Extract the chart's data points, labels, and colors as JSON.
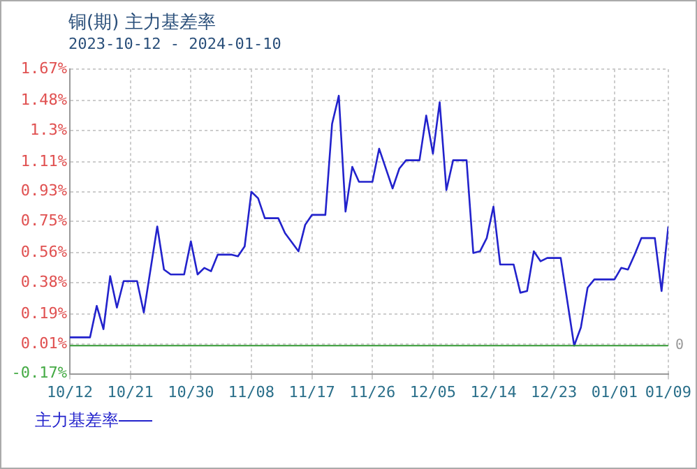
{
  "chart_data": {
    "type": "line",
    "title": "铜(期) 主力基差率",
    "subtitle": "2023-10-12 - 2024-01-10",
    "x": [
      "2023-10-12",
      "2023-10-15",
      "2023-10-16",
      "2023-10-17",
      "2023-10-18",
      "2023-10-19",
      "2023-10-20",
      "2023-10-22",
      "2023-10-23",
      "2023-10-25",
      "2023-10-26",
      "2023-10-27",
      "2023-10-29",
      "2023-10-30",
      "2023-10-31",
      "2023-11-01",
      "2023-11-02",
      "2023-11-03",
      "2023-11-05",
      "2023-11-06",
      "2023-11-07",
      "2023-11-08",
      "2023-11-09",
      "2023-11-10",
      "2023-11-12",
      "2023-11-13",
      "2023-11-15",
      "2023-11-16",
      "2023-11-17",
      "2023-11-19",
      "2023-11-20",
      "2023-11-21",
      "2023-11-22",
      "2023-11-23",
      "2023-11-24",
      "2023-11-26",
      "2023-11-27",
      "2023-11-29",
      "2023-11-30",
      "2023-12-01",
      "2023-12-03",
      "2023-12-04",
      "2023-12-05",
      "2023-12-06",
      "2023-12-07",
      "2023-12-08",
      "2023-12-10",
      "2023-12-11",
      "2023-12-12",
      "2023-12-13",
      "2023-12-14",
      "2023-12-15",
      "2023-12-17",
      "2023-12-18",
      "2023-12-19",
      "2023-12-20",
      "2023-12-21",
      "2023-12-22",
      "2023-12-24",
      "2023-12-26",
      "2023-12-27",
      "2023-12-28",
      "2023-12-29",
      "2024-01-01",
      "2024-01-02",
      "2024-01-03",
      "2024-01-04",
      "2024-01-05",
      "2024-01-07",
      "2024-01-08",
      "2024-01-09"
    ],
    "series": [
      {
        "name": "主力基差率",
        "color": "#2222cc",
        "values": [
          0.05,
          0.05,
          0.24,
          0.1,
          0.42,
          0.23,
          0.39,
          0.39,
          0.2,
          0.72,
          0.46,
          0.43,
          0.43,
          0.63,
          0.43,
          0.47,
          0.45,
          0.55,
          0.55,
          0.54,
          0.6,
          0.93,
          0.89,
          0.77,
          0.77,
          0.68,
          0.57,
          0.73,
          0.79,
          0.79,
          1.34,
          1.51,
          0.81,
          1.08,
          0.99,
          0.99,
          1.19,
          0.95,
          1.07,
          1.12,
          1.12,
          1.39,
          1.16,
          1.47,
          0.94,
          1.12,
          1.12,
          0.56,
          0.57,
          0.65,
          0.84,
          0.49,
          0.49,
          0.32,
          0.33,
          0.57,
          0.51,
          0.53,
          0.53,
          0,
          0.11,
          0.35,
          0.4,
          0.4,
          0.47,
          0.46,
          0.55,
          0.65,
          0.65,
          0.33,
          0.72
        ]
      }
    ],
    "xlim": [
      "2023-10-12",
      "2024-01-09"
    ],
    "xticks": [
      {
        "value": "2023-10-12",
        "label": "10/12"
      },
      {
        "value": "2023-10-21",
        "label": "10/21"
      },
      {
        "value": "2023-10-30",
        "label": "10/30"
      },
      {
        "value": "2023-11-08",
        "label": "11/08"
      },
      {
        "value": "2023-11-17",
        "label": "11/17"
      },
      {
        "value": "2023-11-26",
        "label": "11/26"
      },
      {
        "value": "2023-12-05",
        "label": "12/05"
      },
      {
        "value": "2023-12-14",
        "label": "12/14"
      },
      {
        "value": "2023-12-23",
        "label": "12/23"
      },
      {
        "value": "2024-01-01",
        "label": "01/01"
      },
      {
        "value": "2024-01-09",
        "label": "01/09"
      }
    ],
    "ylim": [
      -0.17,
      1.67
    ],
    "yticks": [
      {
        "value": -0.17,
        "label": "-0.17%"
      },
      {
        "value": 0.01,
        "label": "0.01%"
      },
      {
        "value": 0.19,
        "label": "0.19%"
      },
      {
        "value": 0.38,
        "label": "0.38%"
      },
      {
        "value": 0.56,
        "label": "0.56%"
      },
      {
        "value": 0.75,
        "label": "0.75%"
      },
      {
        "value": 0.93,
        "label": "0.93%"
      },
      {
        "value": 1.11,
        "label": "1.11%"
      },
      {
        "value": 1.3,
        "label": "1.3%"
      },
      {
        "value": 1.48,
        "label": "1.48%"
      },
      {
        "value": 1.67,
        "label": "1.67%"
      }
    ],
    "ref_lines": [
      {
        "axis": "y",
        "value": 0,
        "label": "0",
        "color": "#339933"
      }
    ],
    "grid": true,
    "legend": "bottom",
    "marker": "none",
    "line_style": "solid"
  }
}
